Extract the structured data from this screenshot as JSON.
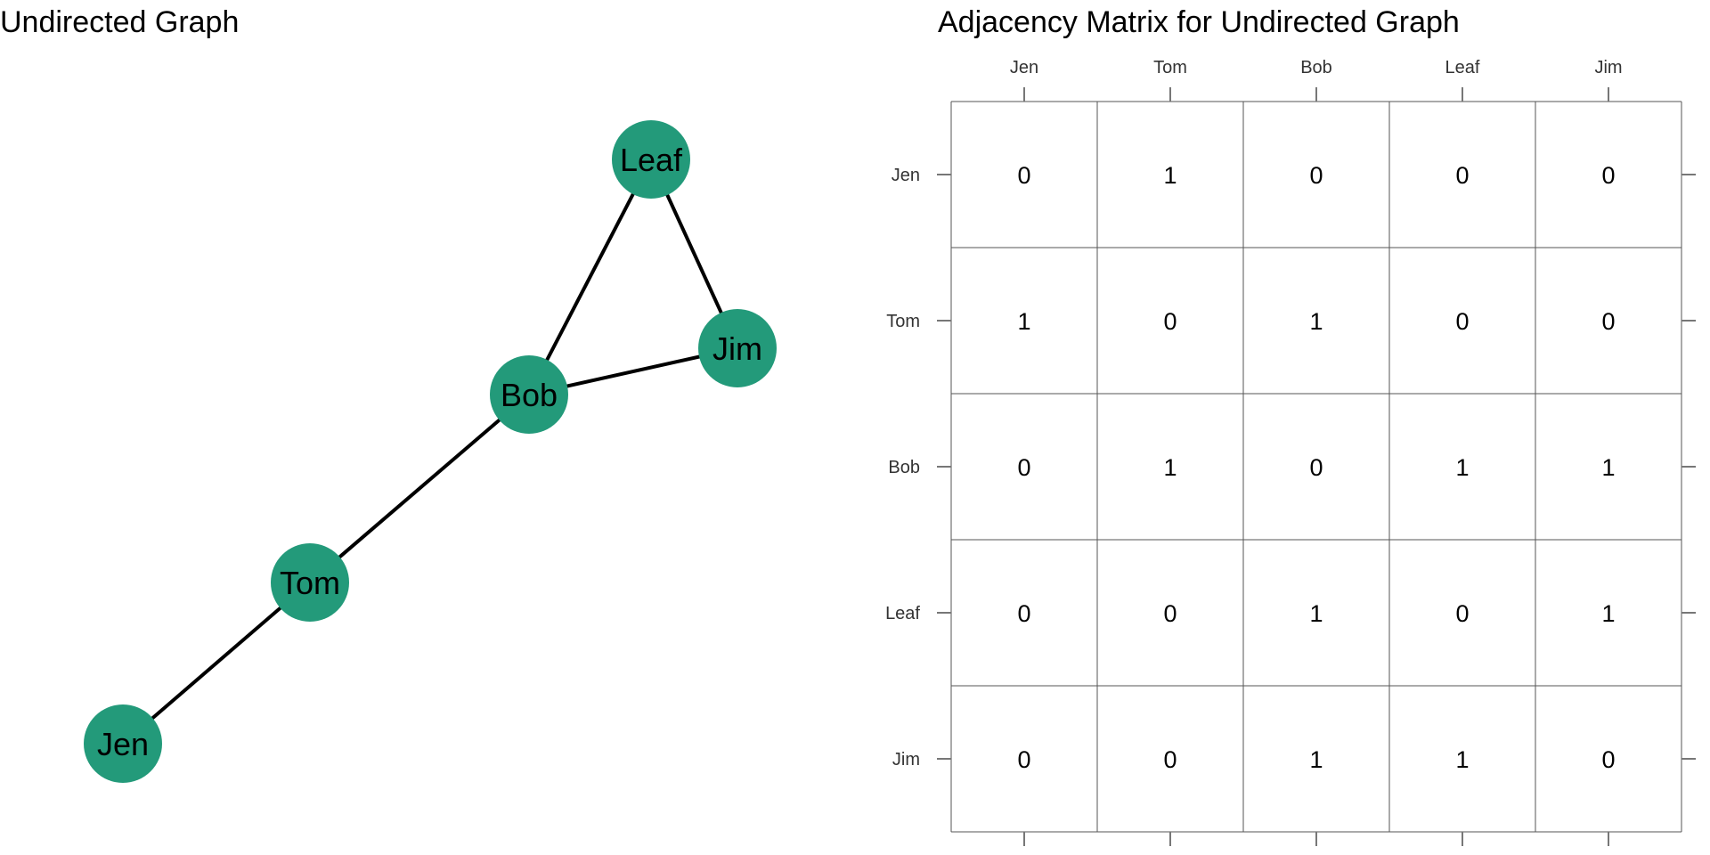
{
  "graph": {
    "title": "Undirected Graph",
    "node_color": "#239A7A",
    "edge_color": "#000000",
    "nodes": [
      {
        "id": "Leaf",
        "label": "Leaf"
      },
      {
        "id": "Jim",
        "label": "Jim"
      },
      {
        "id": "Bob",
        "label": "Bob"
      },
      {
        "id": "Tom",
        "label": "Tom"
      },
      {
        "id": "Jen",
        "label": "Jen"
      }
    ],
    "edges": [
      {
        "from": "Leaf",
        "to": "Bob"
      },
      {
        "from": "Leaf",
        "to": "Jim"
      },
      {
        "from": "Bob",
        "to": "Jim"
      },
      {
        "from": "Bob",
        "to": "Tom"
      },
      {
        "from": "Tom",
        "to": "Jen"
      }
    ]
  },
  "matrix": {
    "title": "Adjacency Matrix for Undirected Graph",
    "columns": [
      "Jen",
      "Tom",
      "Bob",
      "Leaf",
      "Jim"
    ],
    "rows": [
      "Jen",
      "Tom",
      "Bob",
      "Leaf",
      "Jim"
    ],
    "values": [
      [
        0,
        1,
        0,
        0,
        0
      ],
      [
        1,
        0,
        1,
        0,
        0
      ],
      [
        0,
        1,
        0,
        1,
        1
      ],
      [
        0,
        0,
        1,
        0,
        1
      ],
      [
        0,
        0,
        1,
        1,
        0
      ]
    ]
  }
}
